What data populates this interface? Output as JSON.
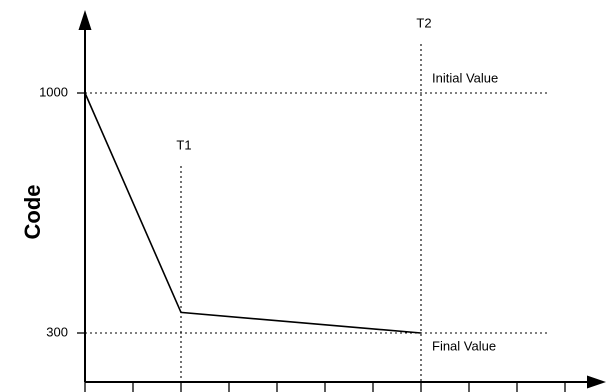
{
  "chart_data": {
    "type": "line",
    "title": "",
    "xlabel": "",
    "ylabel": "Code",
    "x_tick_count": 11,
    "series": [
      {
        "x": [
          0,
          2,
          7
        ],
        "y": [
          1000,
          360,
          300
        ]
      }
    ],
    "reference_lines": {
      "horizontal": [
        {
          "y": 1000,
          "label": "Initial Value",
          "tick_label": "1000"
        },
        {
          "y": 300,
          "label": "Final Value",
          "tick_label": "300"
        }
      ],
      "vertical": [
        {
          "x": 2,
          "label": "T1"
        },
        {
          "x": 7,
          "label": "T2"
        }
      ]
    },
    "grid": false,
    "legend": "none"
  }
}
